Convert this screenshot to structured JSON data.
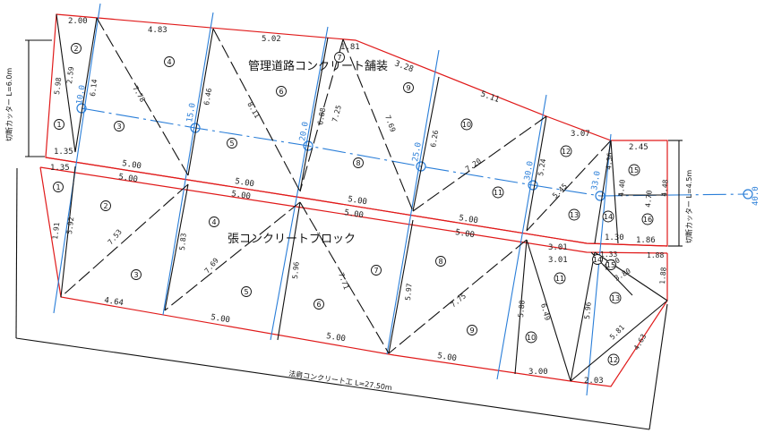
{
  "labels": {
    "upper_title": "管理道路コンクリート舗装",
    "lower_title": "張コンクリートブロック",
    "left_cutter": "切断カッター L=6.0m",
    "right_cutter": "切断カッター L=4.5m",
    "bottom_total": "法肩コンクリート工 L=27.50m"
  },
  "stations": [
    "10.0",
    "15.0",
    "20.0",
    "25.0",
    "30.0",
    "33.0",
    "40.0"
  ],
  "upper_dims": {
    "top": [
      "2.00",
      "4.83",
      "5.02",
      "1.81",
      "3.28",
      "5.11",
      "3.07",
      "2.45"
    ],
    "middle": [
      "1.35",
      "5.00",
      "5.00",
      "5.00",
      "5.00",
      "1.30",
      "1.86"
    ],
    "inner": [
      "5.98",
      "2.59",
      "6.14",
      "7.78",
      "6.46",
      "8.11",
      "6.88",
      "7.25",
      "7.69",
      "6.26",
      "7.20",
      "5.24",
      "5.45",
      "4.36",
      "4.40",
      "4.70",
      "4.48"
    ]
  },
  "lower_dims": {
    "top": [
      "1.35",
      "5.00",
      "5.00",
      "5.00",
      "5.00",
      "3.01"
    ],
    "bottom": [
      "4.64",
      "5.00",
      "5.00",
      "5.00",
      "3.00",
      "2.03"
    ],
    "inner": [
      "5.92",
      "1.91",
      "7.53",
      "5.83",
      "7.69",
      "5.96",
      "7.71",
      "5.97",
      "7.75",
      "5.88",
      "6.49",
      "5.96",
      "5.81",
      "4.63",
      "3.01",
      "1.33",
      "1.88",
      "2.70",
      "3.80",
      "1.88"
    ]
  },
  "upper_numbers": [
    "1",
    "2",
    "3",
    "4",
    "5",
    "6",
    "7",
    "8",
    "9",
    "10",
    "11",
    "12",
    "13",
    "14",
    "15",
    "16"
  ],
  "lower_numbers": [
    "1",
    "2",
    "3",
    "4",
    "5",
    "6",
    "7",
    "8",
    "9",
    "10",
    "11",
    "12",
    "13",
    "14",
    "15"
  ]
}
